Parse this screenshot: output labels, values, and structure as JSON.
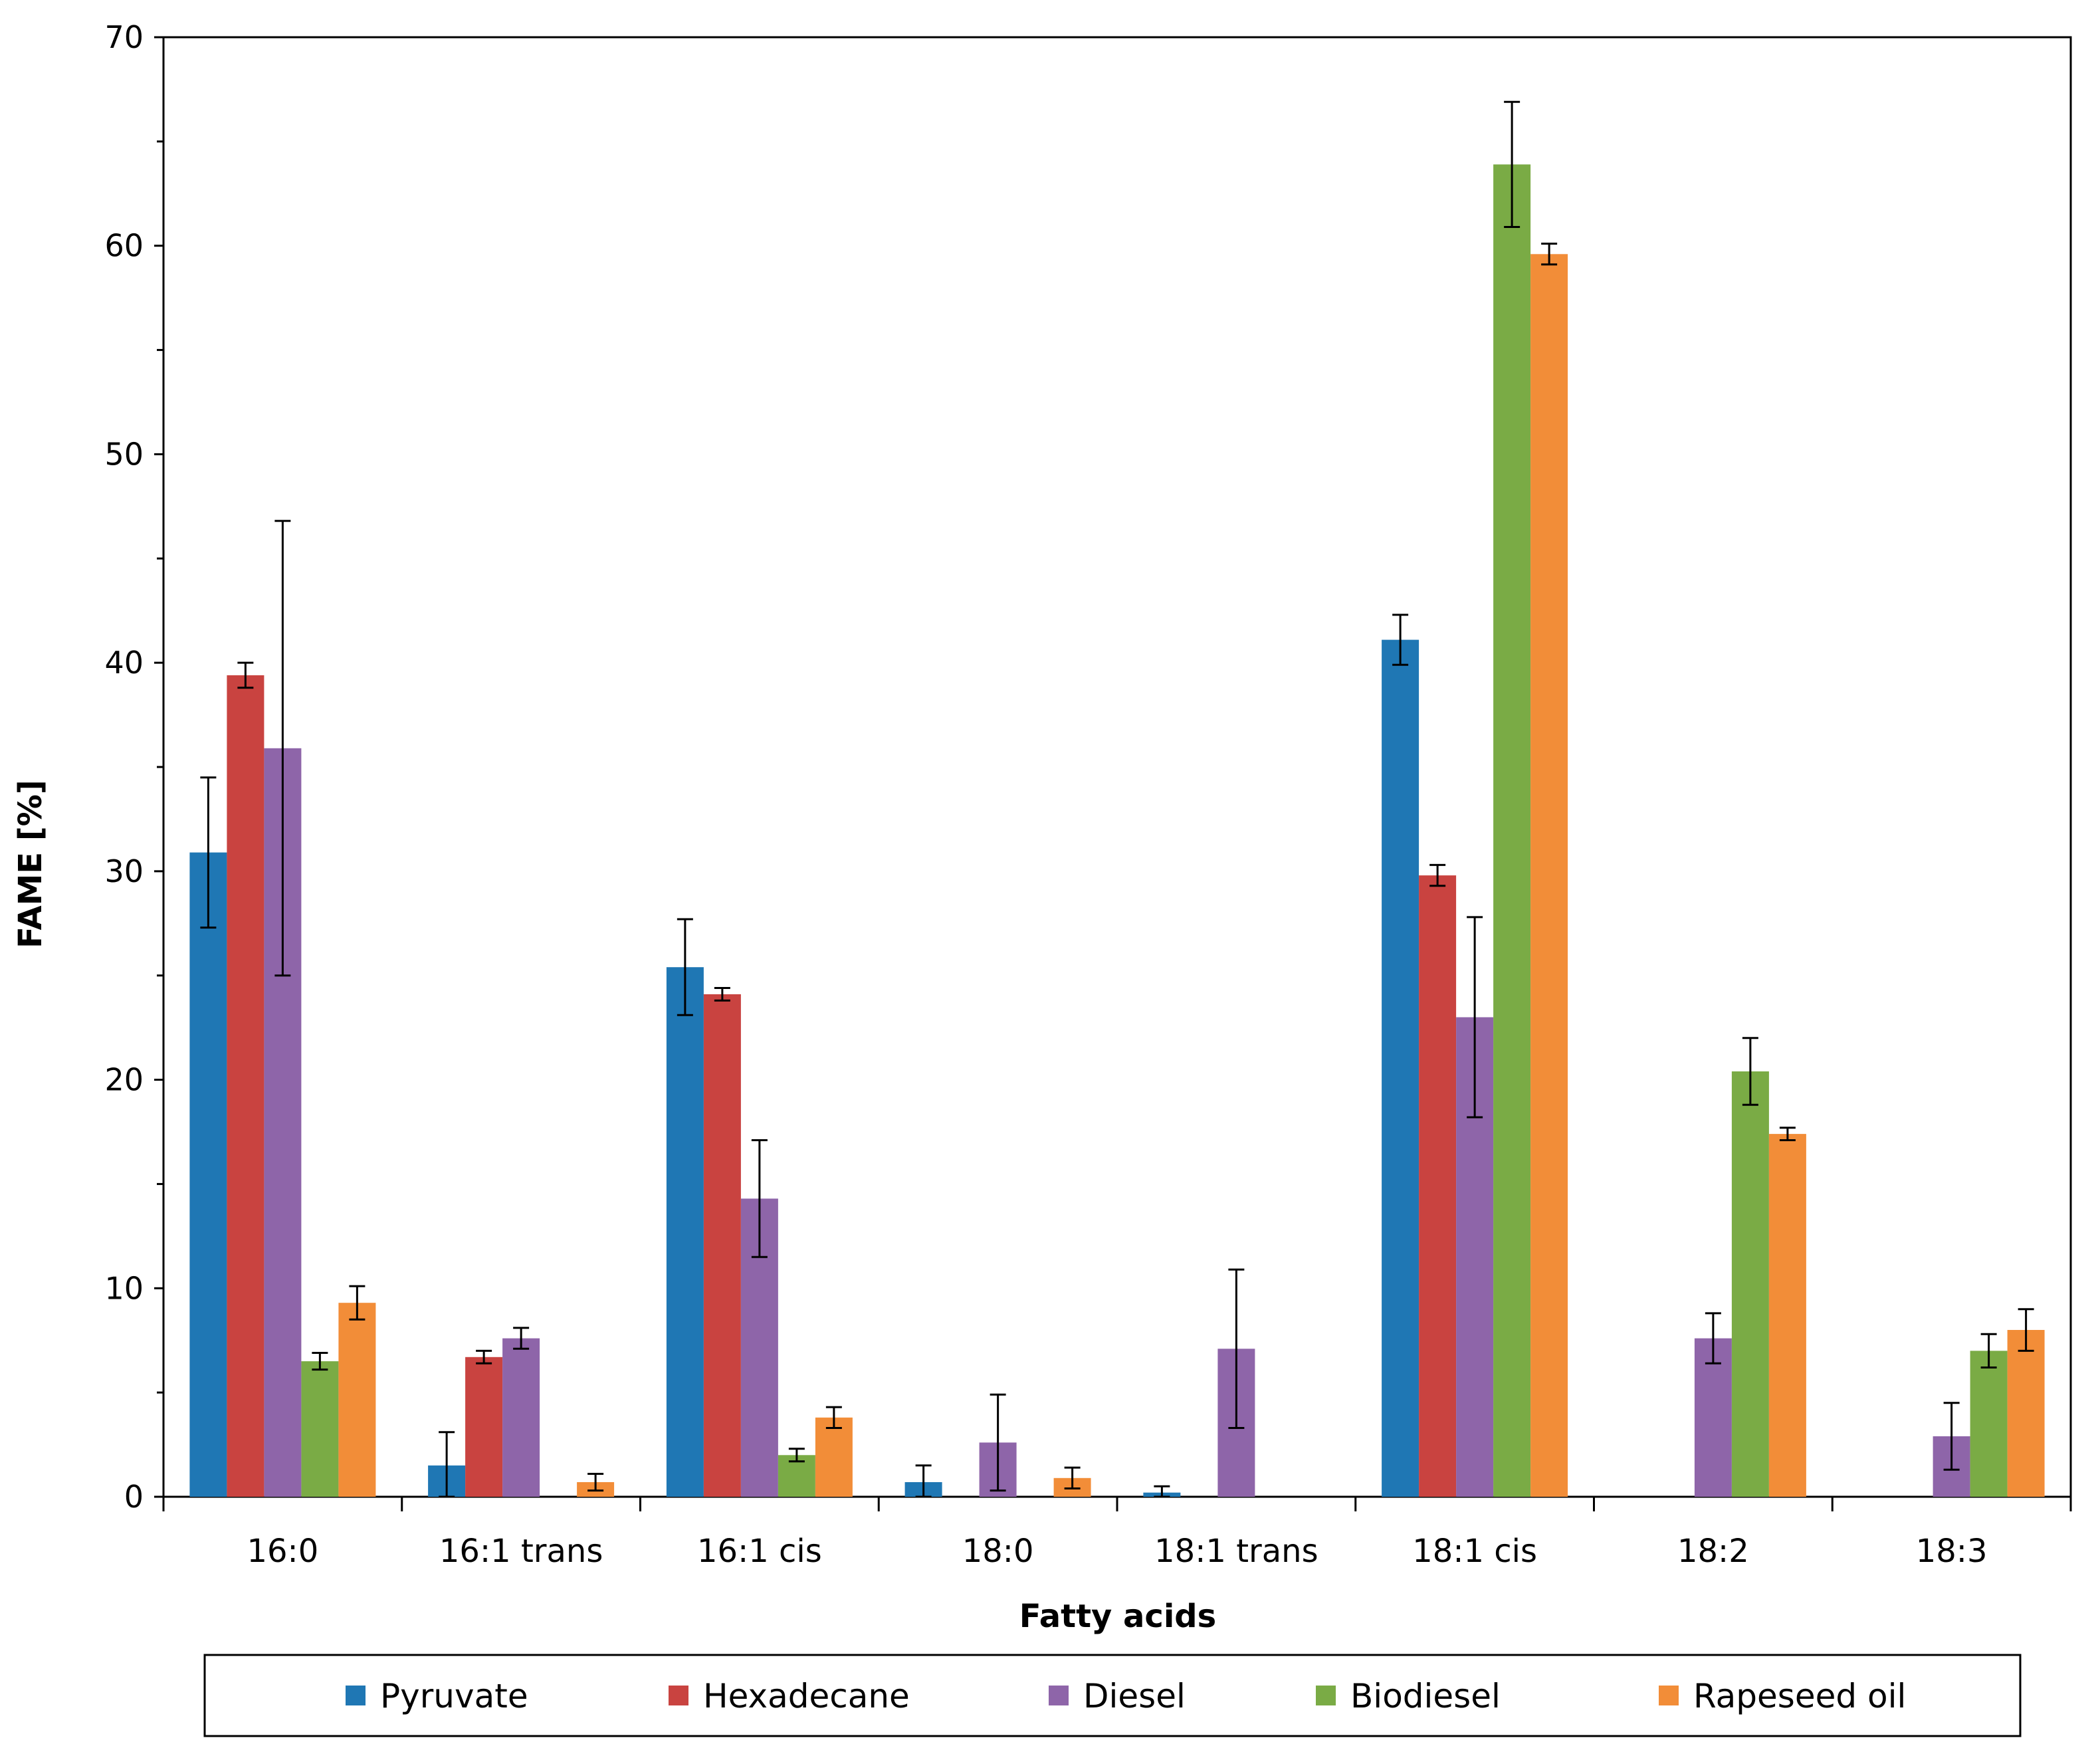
{
  "chart_data": {
    "type": "bar",
    "title": "",
    "xlabel": "Fatty acids",
    "ylabel": "FAME [%]",
    "ylim": [
      0,
      70
    ],
    "yticks": [
      0,
      10,
      20,
      30,
      40,
      50,
      60,
      70
    ],
    "grid": false,
    "legend_position": "bottom",
    "categories": [
      "16:0",
      "16:1 trans",
      "16:1 cis",
      "18:0",
      "18:1 trans",
      "18:1 cis",
      "18:2",
      "18:3"
    ],
    "series": [
      {
        "name": "Pyruvate",
        "color": "#1f77b4",
        "values": [
          30.9,
          1.5,
          25.4,
          0.7,
          0.2,
          41.1,
          0,
          0
        ],
        "errors": [
          3.6,
          1.6,
          2.3,
          0.8,
          0.3,
          1.2,
          0,
          0
        ]
      },
      {
        "name": "Hexadecane",
        "color": "#c94340",
        "values": [
          39.4,
          6.7,
          24.1,
          0,
          0,
          29.8,
          0,
          0
        ],
        "errors": [
          0.6,
          0.3,
          0.3,
          0,
          0,
          0.5,
          0,
          0
        ]
      },
      {
        "name": "Diesel",
        "color": "#8e65a9",
        "values": [
          35.9,
          7.6,
          14.3,
          2.6,
          7.1,
          23.0,
          7.6,
          2.9
        ],
        "errors": [
          10.9,
          0.5,
          2.8,
          2.3,
          3.8,
          4.8,
          1.2,
          1.6
        ]
      },
      {
        "name": "Biodiesel",
        "color": "#7aab45",
        "values": [
          6.5,
          0,
          2.0,
          0,
          0,
          63.9,
          20.4,
          7.0
        ],
        "errors": [
          0.4,
          0,
          0.3,
          0,
          0,
          3.0,
          1.6,
          0.8
        ]
      },
      {
        "name": "Rapeseed oil",
        "color": "#f28d38",
        "values": [
          9.3,
          0.7,
          3.8,
          0.9,
          0,
          59.6,
          17.4,
          8.0
        ],
        "errors": [
          0.8,
          0.4,
          0.5,
          0.5,
          0,
          0.5,
          0.3,
          1.0
        ]
      }
    ]
  }
}
